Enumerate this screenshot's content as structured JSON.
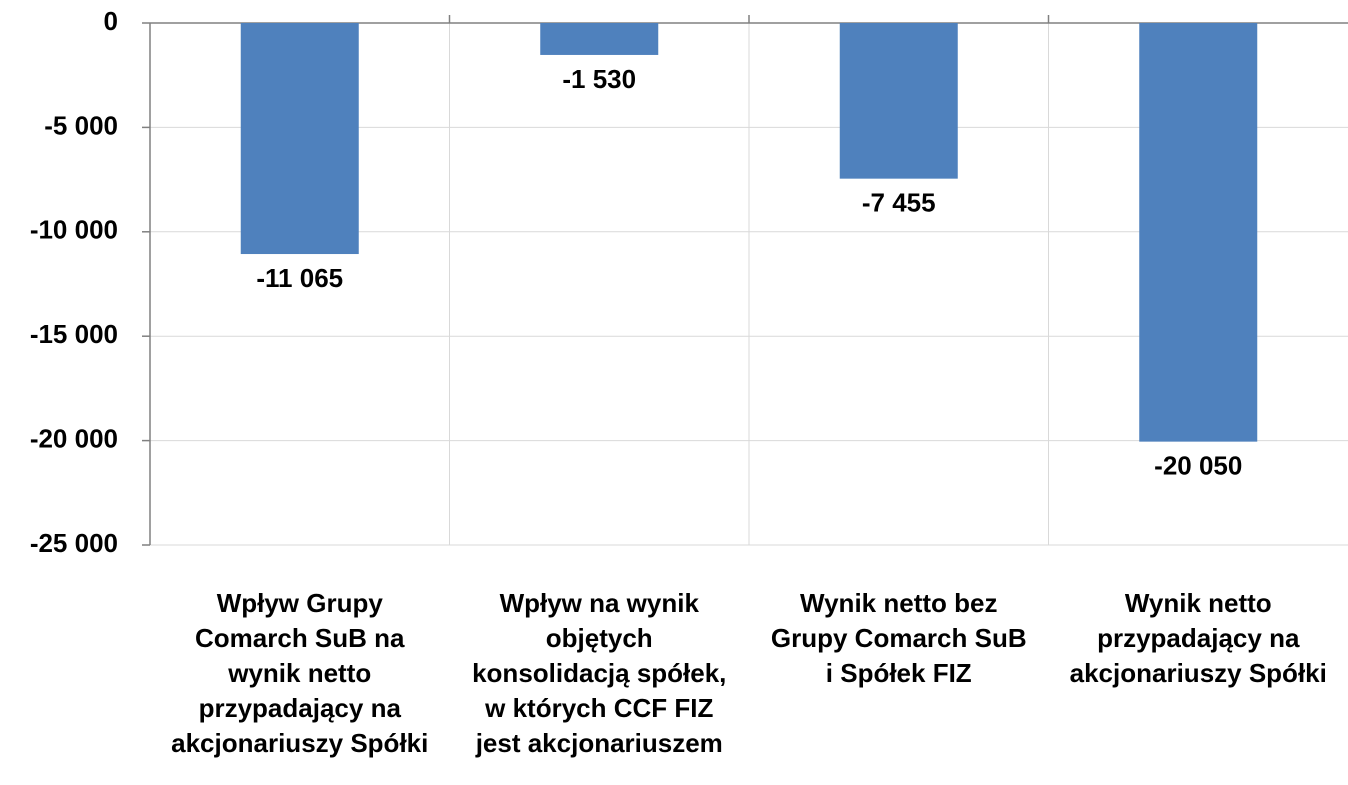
{
  "chart_data": {
    "type": "bar",
    "categories": [
      [
        "Wpływ Grupy",
        "Comarch SuB na",
        "wynik netto",
        "przypadający na",
        "akcjonariuszy Spółki"
      ],
      [
        "Wpływ na wynik",
        "objętych",
        "konsolidacją spółek,",
        "w których CCF FIZ",
        "jest akcjonariuszem"
      ],
      [
        "Wynik netto bez",
        "Grupy Comarch SuB",
        "i Spółek FIZ"
      ],
      [
        "Wynik netto",
        "przypadający na",
        "akcjonariuszy Spółki"
      ]
    ],
    "values": [
      -11065,
      -1530,
      -7455,
      -20050
    ],
    "value_labels": [
      "-11 065",
      "-1 530",
      "-7 455",
      "-20 050"
    ],
    "color": "#4f81bd",
    "ylim": [
      -25000,
      0
    ],
    "yticks": [
      0,
      {
        "value": -5000,
        "label": "-5 000"
      },
      {
        "value": -10000,
        "label": "-10 000"
      },
      {
        "value": -15000,
        "label": "-15 000"
      },
      {
        "value": -20000,
        "label": "-20 000"
      },
      {
        "value": -25000,
        "label": "-25 000"
      }
    ],
    "grid": true
  }
}
